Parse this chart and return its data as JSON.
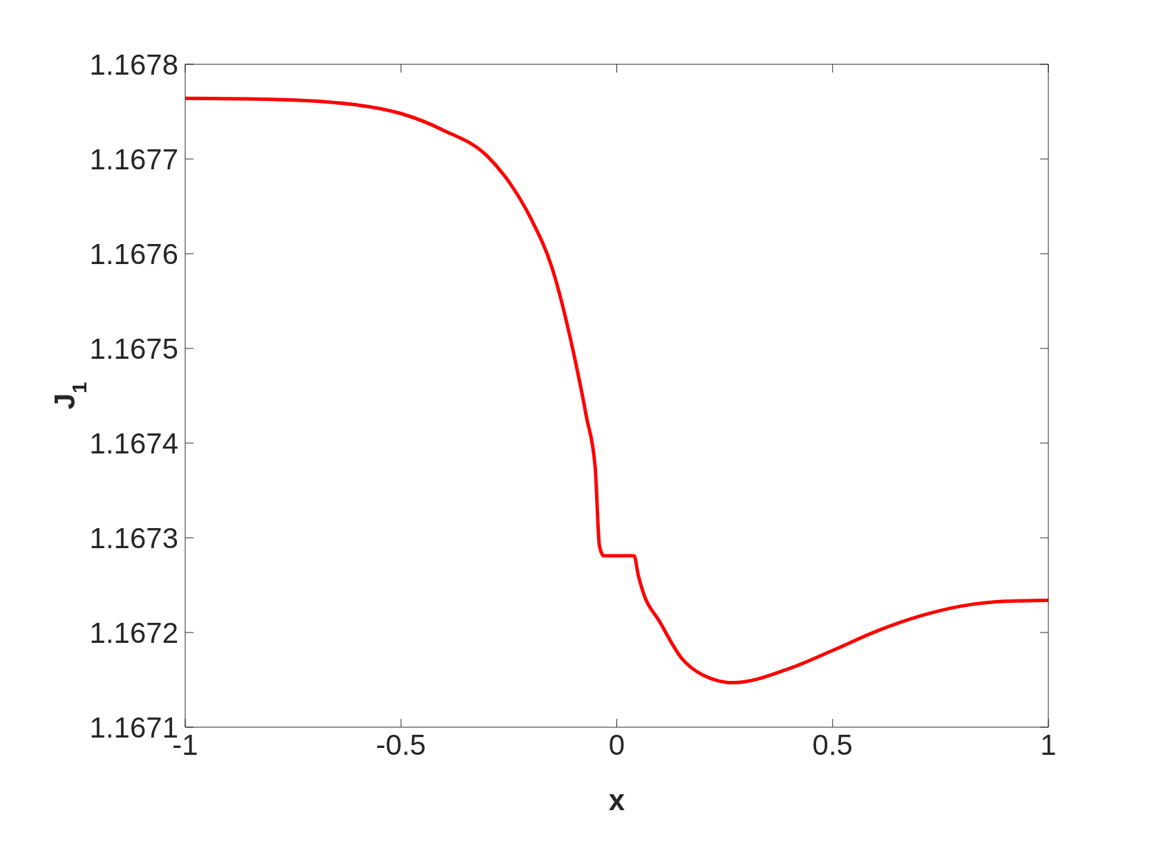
{
  "chart_data": {
    "type": "line",
    "xlabel": "x",
    "ylabel": "J$_{1}$",
    "x": [
      -1,
      -0.8,
      -0.6,
      -0.5,
      -0.4,
      -0.3,
      -0.25,
      -0.2,
      -0.15,
      -0.1,
      -0.07,
      -0.05,
      -0.04,
      -0.03,
      0.04,
      0.05,
      0.06,
      0.1,
      0.15,
      0.2,
      0.27,
      0.4,
      0.5,
      0.6,
      0.7,
      0.8,
      0.9,
      1
    ],
    "series": [
      {
        "color": "#ff0000",
        "values": [
          1.167764,
          1.167763,
          1.167757,
          1.167748,
          1.16773,
          1.167703,
          1.167676,
          1.167638,
          1.167585,
          1.167495,
          1.167427,
          1.167374,
          1.167291,
          1.167281,
          1.167281,
          1.16726,
          1.167244,
          1.167211,
          1.167173,
          1.167155,
          1.167147,
          1.167162,
          1.167181,
          1.167201,
          1.167217,
          1.167228,
          1.167233,
          1.167234
        ]
      }
    ],
    "xlim": [
      -1,
      1
    ],
    "xticks": [
      -1,
      -0.5,
      0,
      0.5,
      1
    ],
    "ylim": [
      1.1671,
      1.1678
    ],
    "yticks": [
      1.1671,
      1.1672,
      1.1673,
      1.1674,
      1.1675,
      1.1676,
      1.1677,
      1.1678
    ],
    "grid": false,
    "legend": false,
    "marker": "none",
    "line_style": "solid"
  }
}
